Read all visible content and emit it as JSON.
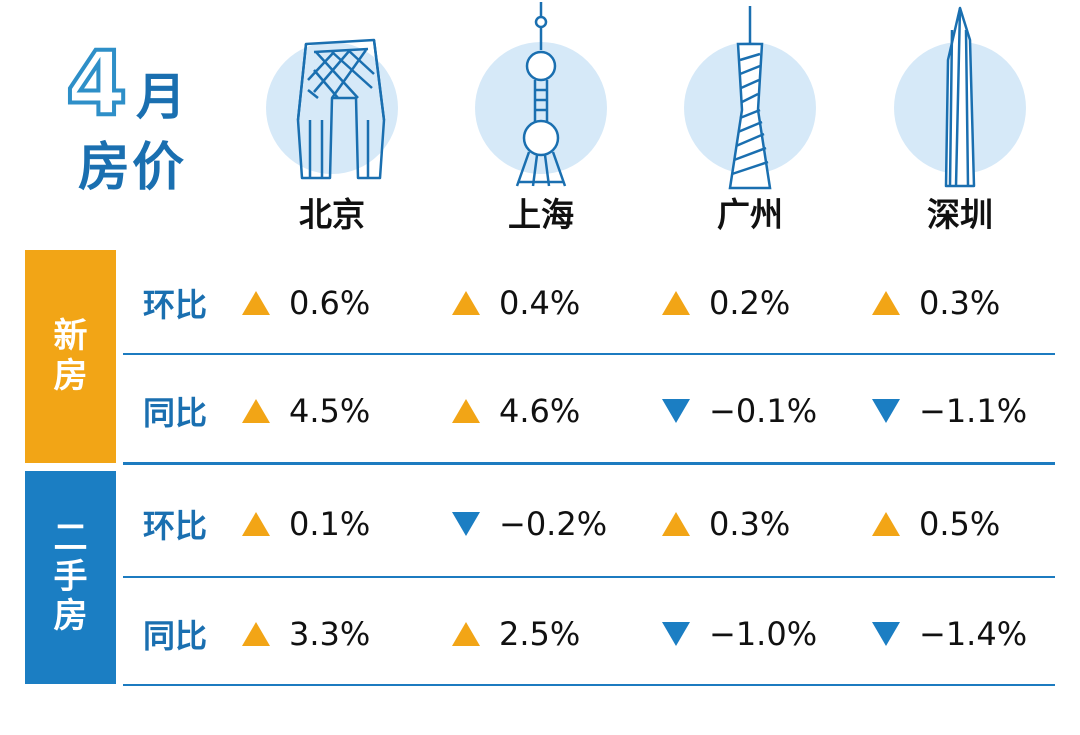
{
  "title": {
    "number": "4",
    "month": "月",
    "subtitle": "房价"
  },
  "cities": [
    "北京",
    "上海",
    "广州",
    "深圳"
  ],
  "groups": [
    {
      "label": "新房",
      "color": "#f2a516"
    },
    {
      "label": "二手房",
      "color": "#1b7ec3"
    }
  ],
  "rows": [
    {
      "metric": "环比",
      "values": [
        "0.6%",
        "0.4%",
        "0.2%",
        "0.3%"
      ],
      "dirs": [
        "up",
        "up",
        "up",
        "up"
      ]
    },
    {
      "metric": "同比",
      "values": [
        "4.5%",
        "4.6%",
        "−0.1%",
        "−1.1%"
      ],
      "dirs": [
        "up",
        "up",
        "down",
        "down"
      ]
    },
    {
      "metric": "环比",
      "values": [
        "0.1%",
        "−0.2%",
        "0.3%",
        "0.5%"
      ],
      "dirs": [
        "up",
        "down",
        "up",
        "up"
      ]
    },
    {
      "metric": "同比",
      "values": [
        "3.3%",
        "2.5%",
        "−1.0%",
        "−1.4%"
      ],
      "dirs": [
        "up",
        "up",
        "down",
        "down"
      ]
    }
  ],
  "colors": {
    "up": "#f2a516",
    "down": "#1b7ec3",
    "accent": "#1a6fb0",
    "circle": "#d6e9f8"
  },
  "icons": [
    "cctv-tower-icon",
    "oriental-pearl-tower-icon",
    "canton-tower-icon",
    "ping-an-finance-center-icon"
  ]
}
